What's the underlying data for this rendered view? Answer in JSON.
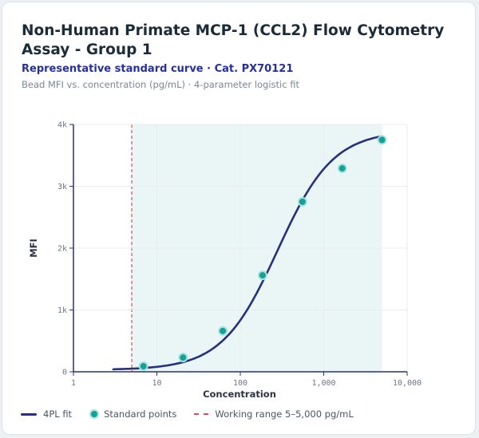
{
  "header": {
    "title": "Non-Human Primate MCP-1 (CCL2) Flow Cytometry Assay - Group 1",
    "subtitle": "Representative standard curve · Cat. PX70121",
    "caption": "Bead MFI vs. concentration (pg/mL) · 4-parameter logistic fit"
  },
  "legend": {
    "fit": "4PL fit",
    "points": "Standard points",
    "range": "Working range 5–5,000 pg/mL"
  },
  "chart_data": {
    "type": "scatter",
    "xlabel": "Concentration",
    "ylabel": "MFI",
    "x_scale": "log",
    "xlim": [
      1,
      10000
    ],
    "ylim": [
      0,
      4000
    ],
    "x_ticks": [
      1,
      10,
      100,
      1000,
      10000
    ],
    "x_tick_labels": [
      "1",
      "10",
      "100",
      "1,000",
      "10,000"
    ],
    "y_ticks": [
      0,
      1000,
      2000,
      3000,
      4000
    ],
    "y_tick_labels": [
      "0",
      "1k",
      "2k",
      "3k",
      "4k"
    ],
    "grid": true,
    "legend_position": "bottom",
    "working_range": [
      5,
      5000
    ],
    "fit_curve": {
      "name": "4PL fit",
      "x_range": [
        3,
        5000
      ],
      "params": {
        "bottom": 30,
        "top": 3900,
        "ec50": 280,
        "hill": 1.3
      }
    },
    "series": [
      {
        "name": "Standard points",
        "x": [
          6.9,
          20.6,
          61.7,
          185,
          556,
          1667,
          5000
        ],
        "y": [
          90,
          230,
          660,
          1560,
          2750,
          3290,
          3750
        ]
      }
    ],
    "colors": {
      "curve": "#26307f",
      "points": "#12a296",
      "point_ring": "#a8e2dc",
      "range_line": "#d64c5c",
      "range_fill": "#eaf6f5",
      "grid": "#e8ecf0",
      "axis": "#26307f"
    }
  }
}
